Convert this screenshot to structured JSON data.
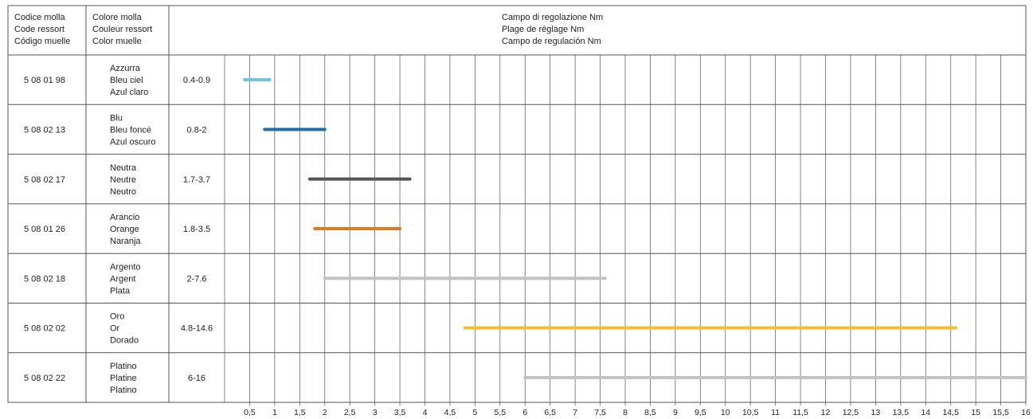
{
  "header": {
    "code": [
      "Codice molla",
      "Code ressort",
      "Código muelle"
    ],
    "color": [
      "Colore molla",
      "Couleur ressort",
      "Color muelle"
    ],
    "range": [
      "Campo di regolazione Nm",
      "Plage de réglage Nm",
      "Campo de regulación Nm"
    ]
  },
  "chart_data": {
    "type": "bar",
    "orientation": "horizontal-range",
    "xlim": [
      0,
      16
    ],
    "tick_step": 0.5,
    "tick_labels": [
      "0,5",
      "1",
      "1,5",
      "2",
      "2,5",
      "3",
      "3,5",
      "4",
      "4,5",
      "5",
      "5,5",
      "6",
      "6,5",
      "7",
      "7,5",
      "8",
      "8,5",
      "9",
      "9,5",
      "10",
      "10,5",
      "11",
      "11,5",
      "12",
      "12,5",
      "13",
      "13,5",
      "14",
      "14,5",
      "15",
      "15,5",
      "16"
    ],
    "grid": true,
    "rows": [
      {
        "code": "5 08 01 98",
        "names": [
          "Azzurra",
          "Bleu ciel",
          "Azul claro"
        ],
        "range_label": "0.4-0.9",
        "start": 0.4,
        "end": 0.9,
        "color": "#6fc4d9"
      },
      {
        "code": "5 08 02 13",
        "names": [
          "Blu",
          "Bleu foncé",
          "Azul oscuro"
        ],
        "range_label": "0.8-2",
        "start": 0.8,
        "end": 2,
        "color": "#1f6fa3"
      },
      {
        "code": "5 08 02 17",
        "names": [
          "Neutra",
          "Neutre",
          "Neutro"
        ],
        "range_label": "1.7-3.7",
        "start": 1.7,
        "end": 3.7,
        "color": "#555555"
      },
      {
        "code": "5 08 01 26",
        "names": [
          "Arancio",
          "Orange",
          "Naranja"
        ],
        "range_label": "1.8-3.5",
        "start": 1.8,
        "end": 3.5,
        "color": "#e07a22"
      },
      {
        "code": "5 08 02 18",
        "names": [
          "Argento",
          "Argent",
          "Plata"
        ],
        "range_label": "2-7.6",
        "start": 2,
        "end": 7.6,
        "color": "#c3c3c3"
      },
      {
        "code": "5 08 02 02",
        "names": [
          "Oro",
          "Or",
          "Dorado"
        ],
        "range_label": "4.8-14.6",
        "start": 4.8,
        "end": 14.6,
        "color": "#f3bf2d"
      },
      {
        "code": "5 08 02 22",
        "names": [
          "Platino",
          "Platine",
          "Platino"
        ],
        "range_label": "6-16",
        "start": 6,
        "end": 16,
        "color": "#c3c3c3"
      }
    ]
  }
}
